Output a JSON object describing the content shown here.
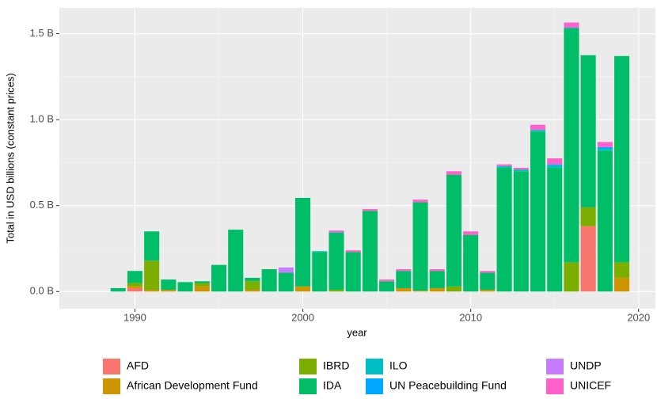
{
  "chart_data": {
    "type": "bar",
    "stacked": true,
    "y_label": "Total in USD billions (constant prices)",
    "x_label": "year",
    "x": [
      1989,
      1990,
      1991,
      1992,
      1993,
      1994,
      1995,
      1996,
      1997,
      1998,
      1999,
      2000,
      2001,
      2002,
      2003,
      2004,
      2005,
      2006,
      2007,
      2008,
      2009,
      2010,
      2011,
      2012,
      2013,
      2014,
      2015,
      2016,
      2017,
      2018,
      2019
    ],
    "xlim": [
      1985.5,
      2021
    ],
    "xticks": [
      1990,
      2000,
      2010,
      2020
    ],
    "ylim": [
      -0.1,
      1.65
    ],
    "yticks": [
      {
        "value": 0,
        "label": "0.0 B"
      },
      {
        "value": 0.5,
        "label": "0.5 B"
      },
      {
        "value": 1,
        "label": "1.0 B"
      },
      {
        "value": 1.5,
        "label": "1.5 B"
      }
    ],
    "grid": true,
    "series": [
      {
        "name": "AFD",
        "color": "#F8766D",
        "values": [
          null,
          0.02,
          null,
          null,
          null,
          null,
          null,
          null,
          null,
          null,
          null,
          null,
          null,
          null,
          null,
          null,
          null,
          null,
          null,
          null,
          null,
          null,
          null,
          null,
          null,
          null,
          null,
          null,
          0.38,
          null,
          null
        ]
      },
      {
        "name": "African Development Fund",
        "color": "#CD9600",
        "values": [
          null,
          0.01,
          0.01,
          0.01,
          null,
          0.03,
          null,
          null,
          0.01,
          null,
          null,
          0.03,
          null,
          null,
          null,
          null,
          null,
          0.02,
          0.005,
          0.02,
          null,
          null,
          0.01,
          null,
          null,
          null,
          null,
          null,
          null,
          null,
          0.08
        ]
      },
      {
        "name": "IBRD",
        "color": "#7CAE00",
        "values": [
          null,
          0.02,
          0.17,
          null,
          null,
          0.02,
          null,
          null,
          0.05,
          null,
          null,
          null,
          null,
          0.01,
          null,
          null,
          null,
          null,
          null,
          null,
          0.03,
          null,
          null,
          null,
          null,
          null,
          null,
          0.17,
          0.11,
          null,
          0.09
        ]
      },
      {
        "name": "IDA",
        "color": "#00BE67",
        "values": [
          0.02,
          0.07,
          0.17,
          0.06,
          0.055,
          0.01,
          0.155,
          0.36,
          0.02,
          0.13,
          0.11,
          0.515,
          0.23,
          0.33,
          0.23,
          0.47,
          0.06,
          0.1,
          0.515,
          0.1,
          0.65,
          0.33,
          0.1,
          0.72,
          0.7,
          0.93,
          0.72,
          1.36,
          0.885,
          0.82,
          1.2
        ]
      },
      {
        "name": "ILO",
        "color": "#00BFC4",
        "values": [
          null,
          null,
          null,
          null,
          null,
          null,
          null,
          null,
          null,
          null,
          null,
          null,
          0.005,
          0.005,
          null,
          null,
          null,
          null,
          null,
          null,
          null,
          null,
          null,
          0.01,
          0.01,
          0.01,
          0.015,
          0.005,
          null,
          0.01,
          null
        ]
      },
      {
        "name": "UN Peacebuilding Fund",
        "color": "#00A9FF",
        "values": [
          null,
          null,
          null,
          null,
          null,
          null,
          null,
          null,
          null,
          null,
          null,
          null,
          null,
          null,
          null,
          null,
          null,
          null,
          null,
          null,
          null,
          null,
          null,
          null,
          null,
          null,
          0.005,
          null,
          null,
          0.01,
          null
        ]
      },
      {
        "name": "UNDP",
        "color": "#C77CFF",
        "values": [
          null,
          null,
          null,
          null,
          null,
          null,
          null,
          null,
          null,
          null,
          0.03,
          null,
          null,
          null,
          null,
          null,
          null,
          null,
          null,
          null,
          null,
          null,
          null,
          null,
          null,
          null,
          null,
          null,
          null,
          null,
          null
        ]
      },
      {
        "name": "UNICEF",
        "color": "#FF61CC",
        "values": [
          null,
          null,
          null,
          null,
          null,
          null,
          null,
          null,
          null,
          null,
          null,
          null,
          null,
          0.01,
          0.01,
          0.01,
          0.01,
          0.01,
          0.015,
          0.01,
          0.02,
          0.02,
          0.01,
          0.01,
          0.01,
          0.03,
          0.035,
          0.03,
          null,
          0.03,
          null
        ]
      }
    ]
  }
}
